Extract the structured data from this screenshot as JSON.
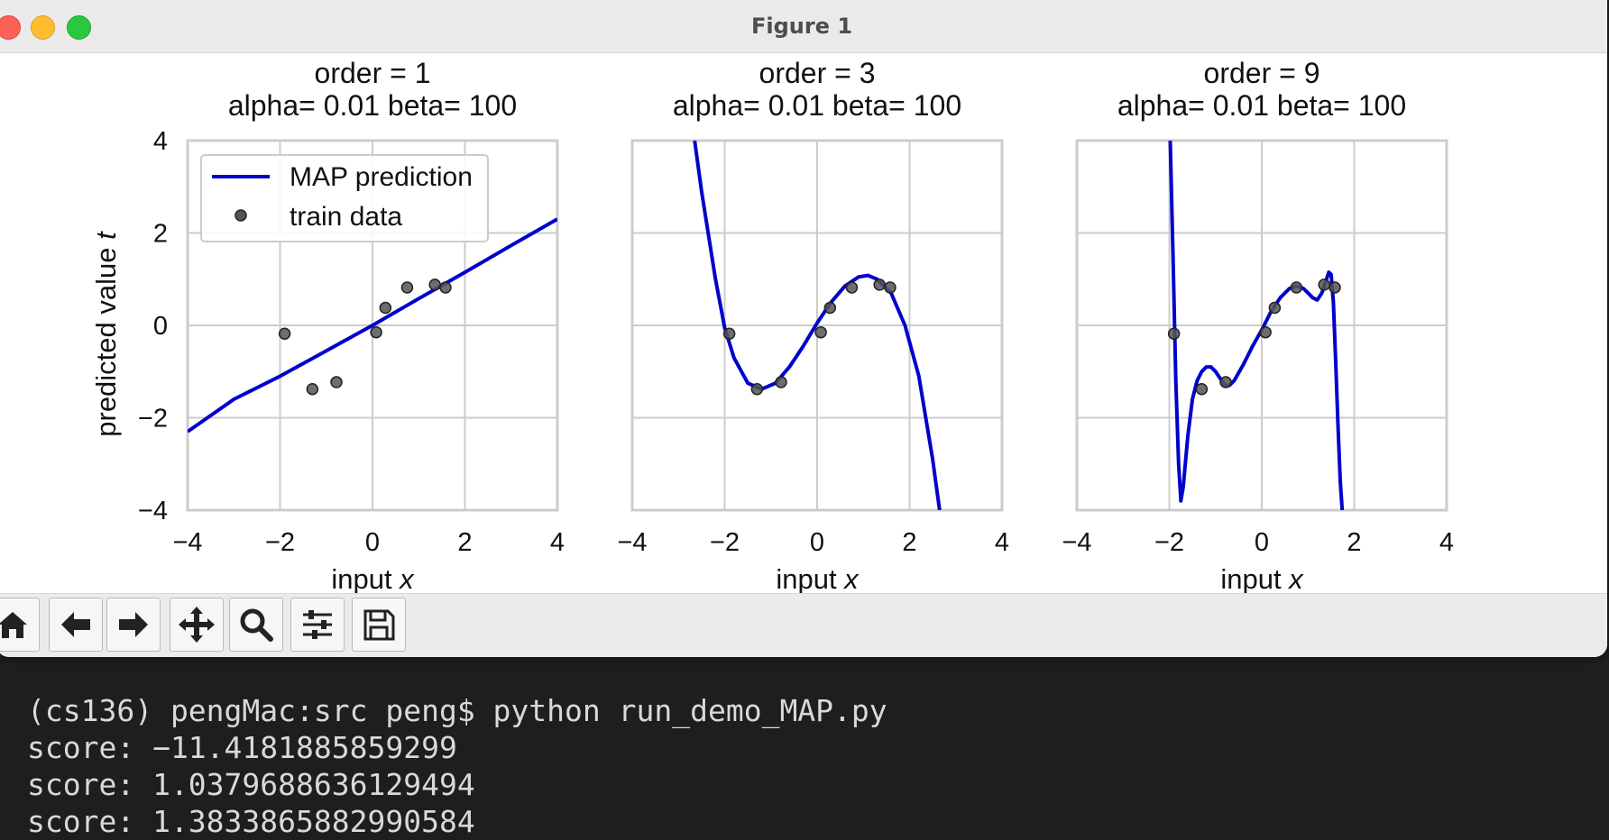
{
  "window": {
    "title": "Figure 1"
  },
  "toolbar": {
    "buttons": [
      {
        "name": "home",
        "icon": "home-icon"
      },
      {
        "name": "back",
        "icon": "arrow-left-icon"
      },
      {
        "name": "forward",
        "icon": "arrow-right-icon"
      },
      {
        "name": "pan",
        "icon": "move-icon"
      },
      {
        "name": "zoom",
        "icon": "magnifier-icon"
      },
      {
        "name": "configure",
        "icon": "sliders-icon"
      },
      {
        "name": "save",
        "icon": "floppy-disk-icon"
      }
    ]
  },
  "terminal": {
    "lines": [
      "(cs136) pengMac:src peng$ python run_demo_MAP.py",
      "score: −11.4181885859299",
      "score: 1.0379688636129494",
      "score: 1.3833865882990584"
    ]
  },
  "colors": {
    "line": "#0000cc",
    "points": "#555555",
    "grid": "#cccccc"
  },
  "chart_data": [
    {
      "type": "line",
      "title": "order = 1\nalpha= 0.01  beta= 100",
      "title_lines": [
        "order = 1",
        "alpha= 0.01  beta= 100"
      ],
      "xlabel": "input x",
      "ylabel": "predicted value t",
      "xlim": [
        -4,
        4
      ],
      "ylim": [
        -4,
        4
      ],
      "xticks": [
        "−4",
        "−2",
        "0",
        "2",
        "4"
      ],
      "yticks": [
        "4",
        "2",
        "0",
        "−2",
        "−4"
      ],
      "grid": true,
      "legend": "top-left",
      "legend_entries": [
        "MAP prediction",
        "train data"
      ],
      "series": [
        {
          "name": "MAP prediction",
          "kind": "line",
          "x": [
            -4,
            -3,
            -2,
            -1,
            0,
            1,
            2,
            3,
            4
          ],
          "y": [
            -2.3,
            -1.6,
            -1.1,
            -0.55,
            0.0,
            0.58,
            1.15,
            1.73,
            2.3
          ]
        },
        {
          "name": "train data",
          "kind": "scatter",
          "x": [
            -1.9,
            -1.3,
            -0.78,
            0.08,
            0.28,
            0.75,
            1.35,
            1.58
          ],
          "y": [
            -0.18,
            -1.38,
            -1.23,
            -0.15,
            0.38,
            0.82,
            0.88,
            0.82
          ]
        }
      ]
    },
    {
      "type": "line",
      "title": "order = 3\nalpha= 0.01  beta= 100",
      "title_lines": [
        "order = 3",
        "alpha= 0.01  beta= 100"
      ],
      "xlabel": "input x",
      "ylabel": "",
      "xlim": [
        -4,
        4
      ],
      "ylim": [
        -4,
        4
      ],
      "xticks": [
        "−4",
        "−2",
        "0",
        "2",
        "4"
      ],
      "yticks": [],
      "grid": true,
      "series": [
        {
          "name": "MAP prediction",
          "kind": "line",
          "x": [
            -2.65,
            -2.5,
            -2.2,
            -2.0,
            -1.8,
            -1.5,
            -1.2,
            -0.9,
            -0.6,
            -0.3,
            0.0,
            0.3,
            0.6,
            0.9,
            1.1,
            1.3,
            1.6,
            1.9,
            2.2,
            2.5,
            2.65
          ],
          "y": [
            4.0,
            2.9,
            1.0,
            -0.05,
            -0.7,
            -1.25,
            -1.38,
            -1.25,
            -0.9,
            -0.45,
            0.05,
            0.5,
            0.85,
            1.05,
            1.08,
            1.0,
            0.7,
            0.0,
            -1.1,
            -2.9,
            -4.0
          ]
        },
        {
          "name": "train data",
          "kind": "scatter",
          "x": [
            -1.9,
            -1.3,
            -0.78,
            0.08,
            0.28,
            0.75,
            1.35,
            1.58
          ],
          "y": [
            -0.18,
            -1.38,
            -1.23,
            -0.15,
            0.38,
            0.82,
            0.88,
            0.82
          ]
        }
      ]
    },
    {
      "type": "line",
      "title": "order = 9\nalpha= 0.01  beta= 100",
      "title_lines": [
        "order = 9",
        "alpha= 0.01  beta= 100"
      ],
      "xlabel": "input x",
      "ylabel": "",
      "xlim": [
        -4,
        4
      ],
      "ylim": [
        -4,
        4
      ],
      "xticks": [
        "−4",
        "−2",
        "0",
        "2",
        "4"
      ],
      "yticks": [],
      "grid": true,
      "series": [
        {
          "name": "MAP prediction",
          "kind": "line",
          "x": [
            -1.98,
            -1.92,
            -1.86,
            -1.8,
            -1.75,
            -1.7,
            -1.6,
            -1.5,
            -1.4,
            -1.3,
            -1.2,
            -1.1,
            -1.0,
            -0.9,
            -0.8,
            -0.7,
            -0.6,
            -0.4,
            -0.2,
            0.0,
            0.2,
            0.4,
            0.6,
            0.75,
            0.9,
            1.0,
            1.1,
            1.2,
            1.3,
            1.4,
            1.45,
            1.5,
            1.55,
            1.6,
            1.65,
            1.7,
            1.74
          ],
          "y": [
            4.0,
            1.5,
            -1.2,
            -3.0,
            -3.8,
            -3.5,
            -2.4,
            -1.6,
            -1.2,
            -1.0,
            -0.9,
            -0.9,
            -1.0,
            -1.15,
            -1.3,
            -1.3,
            -1.2,
            -0.85,
            -0.45,
            -0.1,
            0.3,
            0.6,
            0.8,
            0.85,
            0.8,
            0.7,
            0.6,
            0.55,
            0.7,
            1.0,
            1.15,
            1.1,
            0.5,
            -0.8,
            -2.2,
            -3.4,
            -4.0
          ]
        },
        {
          "name": "train data",
          "kind": "scatter",
          "x": [
            -1.9,
            -1.3,
            -0.78,
            0.08,
            0.28,
            0.75,
            1.35,
            1.58
          ],
          "y": [
            -0.18,
            -1.38,
            -1.23,
            -0.15,
            0.38,
            0.82,
            0.88,
            0.82
          ]
        }
      ]
    }
  ]
}
